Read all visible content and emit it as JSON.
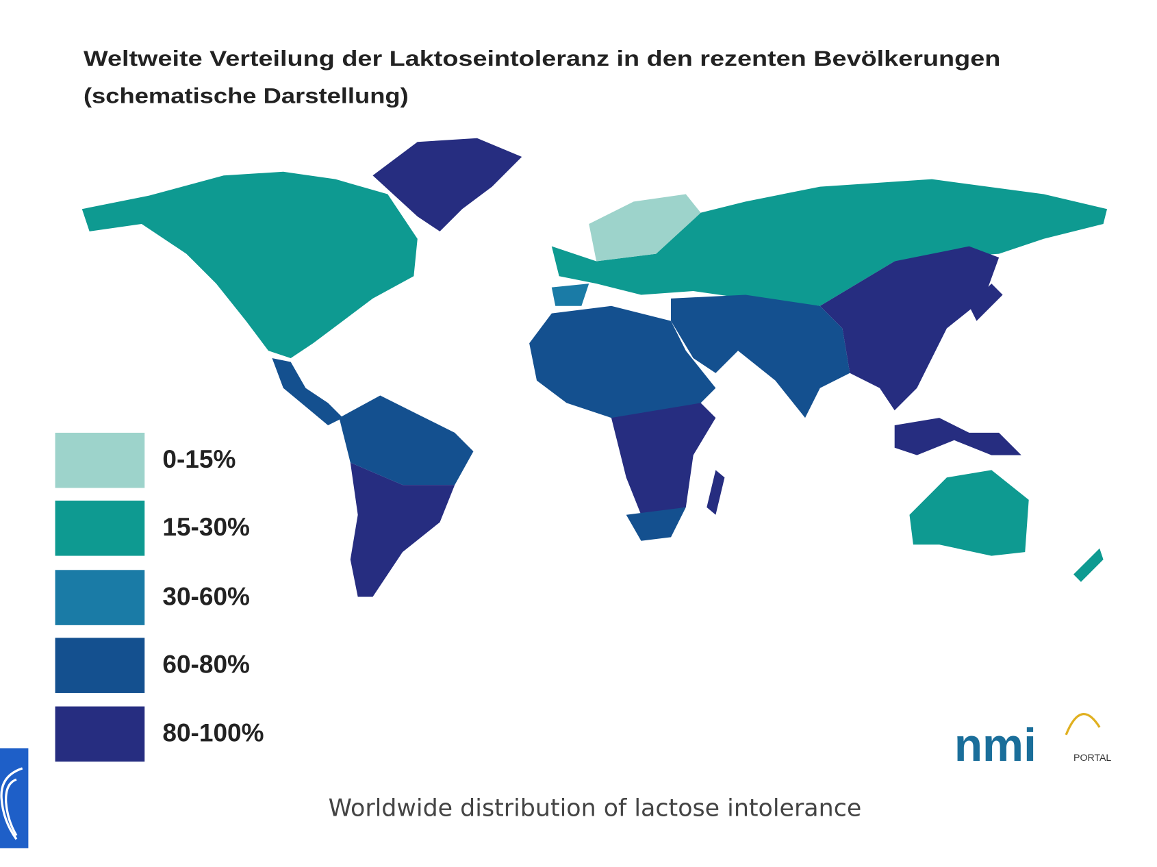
{
  "header": {
    "title": [
      "Weltweite Verteilung der Laktoseintoleranz in den rezenten Bevölkerungen",
      "(schematische Darstellung)"
    ]
  },
  "legend": [
    {
      "label": "0-15%",
      "color": "#9dd3cb"
    },
    {
      "label": "15-30%",
      "color": "#0e9a91"
    },
    {
      "label": "30-60%",
      "color": "#1a7ba6"
    },
    {
      "label": "60-80%",
      "color": "#14508f"
    },
    {
      "label": "80-100%",
      "color": "#262d80"
    }
  ],
  "logo": {
    "name": "nmi",
    "sub": "PORTAL"
  },
  "caption": "Worldwide distribution of lactose intolerance"
}
